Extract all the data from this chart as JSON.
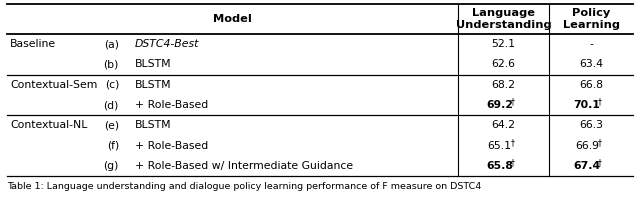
{
  "title_caption": "Table 1: Language understanding and dialogue policy learning performance of F measure on DSTC4",
  "background_color": "#ffffff",
  "line_color": "#000000",
  "rows": [
    {
      "group": "Baseline",
      "letter": "(a)",
      "model": "DSTC4-Best",
      "lu": "52.1",
      "pl": "-",
      "lu_bold": false,
      "pl_bold": false,
      "lu_dagger": false,
      "pl_dagger": false,
      "model_italic": true
    },
    {
      "group": "",
      "letter": "(b)",
      "model": "BLSTM",
      "lu": "62.6",
      "pl": "63.4",
      "lu_bold": false,
      "pl_bold": false,
      "lu_dagger": false,
      "pl_dagger": false,
      "model_italic": false
    },
    {
      "group": "Contextual-Sem",
      "letter": "(c)",
      "model": "BLSTM",
      "lu": "68.2",
      "pl": "66.8",
      "lu_bold": false,
      "pl_bold": false,
      "lu_dagger": false,
      "pl_dagger": false,
      "model_italic": false
    },
    {
      "group": "",
      "letter": "(d)",
      "model": "+ Role-Based",
      "lu": "69.2",
      "pl": "70.1",
      "lu_bold": true,
      "pl_bold": true,
      "lu_dagger": true,
      "pl_dagger": true,
      "model_italic": false
    },
    {
      "group": "Contextual-NL",
      "letter": "(e)",
      "model": "BLSTM",
      "lu": "64.2",
      "pl": "66.3",
      "lu_bold": false,
      "pl_bold": false,
      "lu_dagger": false,
      "pl_dagger": false,
      "model_italic": false
    },
    {
      "group": "",
      "letter": "(f)",
      "model": "+ Role-Based",
      "lu": "65.1",
      "pl": "66.9",
      "lu_bold": false,
      "pl_bold": false,
      "lu_dagger": true,
      "pl_dagger": true,
      "model_italic": false
    },
    {
      "group": "",
      "letter": "(g)",
      "model": "+ Role-Based w/ Intermediate Guidance",
      "lu": "65.8",
      "pl": "67.4",
      "lu_bold": true,
      "pl_bold": true,
      "lu_dagger": true,
      "pl_dagger": true,
      "model_italic": false
    }
  ],
  "group_row_starts": [
    0,
    2,
    4
  ],
  "font_size": 7.8,
  "header_font_size": 8.2,
  "caption_font_size": 6.8,
  "dagger_font_size": 5.5
}
